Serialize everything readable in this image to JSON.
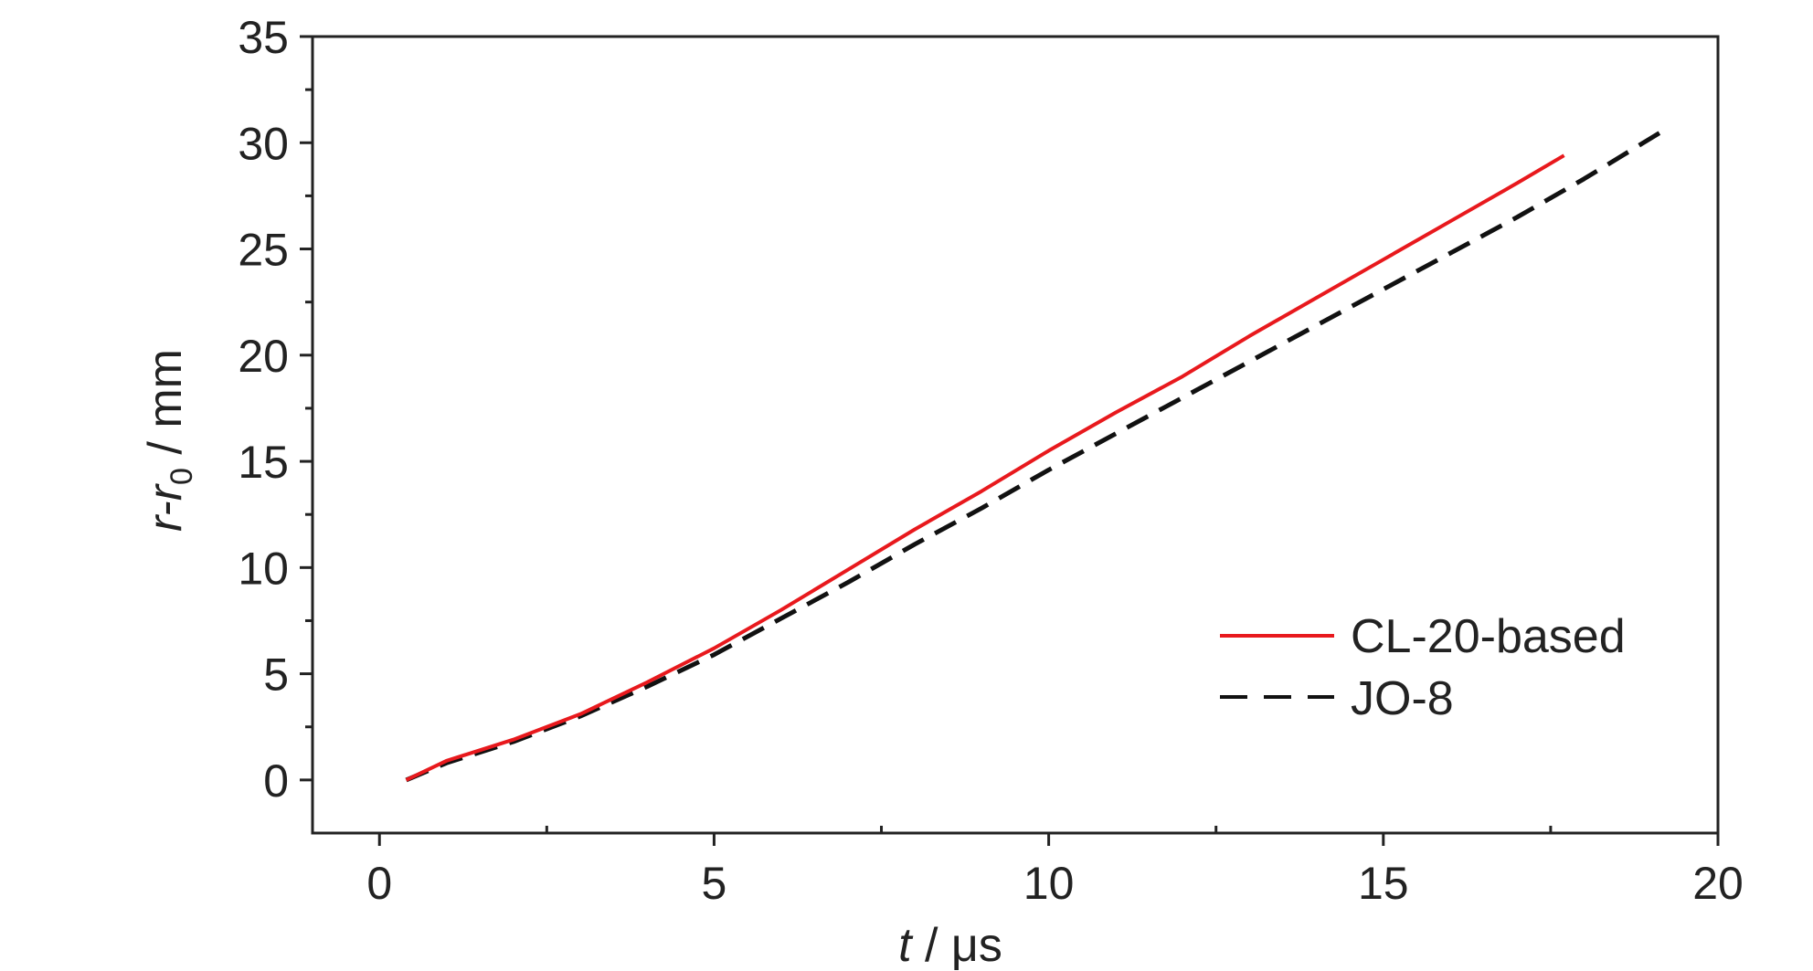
{
  "chart_data": {
    "type": "line",
    "title": "",
    "xlabel": {
      "italic": "t",
      "rest": " / μs"
    },
    "ylabel": {
      "main_italic": "r-r",
      "subscript": "0",
      "rest": " / mm"
    },
    "xlim": [
      -1,
      20
    ],
    "ylim": [
      -2.5,
      35
    ],
    "xticks": [
      0,
      5,
      10,
      15,
      20
    ],
    "yticks": [
      0,
      5,
      10,
      15,
      20,
      25,
      30,
      35
    ],
    "x_minor_ticks": [
      2.5,
      7.5,
      12.5,
      17.5
    ],
    "y_minor_ticks": [
      2.5,
      7.5,
      12.5,
      17.5,
      22.5,
      27.5,
      32.5
    ],
    "grid": false,
    "legend_position": "lower-right",
    "series": [
      {
        "name": "CL-20-based",
        "color": "#e8191d",
        "style": "solid",
        "x": [
          0.4,
          1.0,
          2.0,
          3.0,
          4.0,
          5.0,
          6.0,
          7.0,
          8.0,
          9.0,
          10.0,
          11.0,
          12.0,
          13.0,
          14.0,
          15.0,
          16.0,
          17.0,
          17.7
        ],
        "y": [
          0.0,
          0.9,
          1.9,
          3.1,
          4.6,
          6.2,
          8.0,
          9.9,
          11.8,
          13.6,
          15.5,
          17.3,
          19.0,
          20.9,
          22.7,
          24.5,
          26.3,
          28.1,
          29.4
        ]
      },
      {
        "name": "JO-8",
        "color": "#111111",
        "style": "dashed",
        "x": [
          0.4,
          1.0,
          2.0,
          3.0,
          4.0,
          5.0,
          6.0,
          7.0,
          8.0,
          9.0,
          10.0,
          11.0,
          12.0,
          13.0,
          14.0,
          15.0,
          16.0,
          17.0,
          18.0,
          19.2
        ],
        "y": [
          0.0,
          0.8,
          1.8,
          3.0,
          4.4,
          5.9,
          7.6,
          9.3,
          11.1,
          12.8,
          14.6,
          16.3,
          18.0,
          19.7,
          21.4,
          23.1,
          24.8,
          26.5,
          28.3,
          30.6
        ]
      }
    ]
  }
}
